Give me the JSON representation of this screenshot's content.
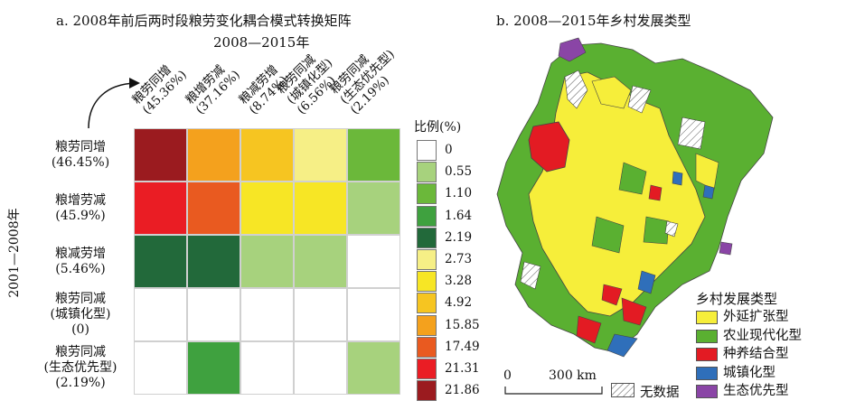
{
  "panel_a": {
    "title": "a. 2008年前后两时段粮劳变化耦合模式转换矩阵",
    "col_axis_title": "2008—2015年",
    "row_axis_title": "2001—2008年",
    "columns": [
      {
        "name": "粮劳同增",
        "pct": "(45.36%)"
      },
      {
        "name": "粮增劳减",
        "pct": "(37.16%)"
      },
      {
        "name": "粮减劳增",
        "pct": "(8.74%)"
      },
      {
        "name": "粮劳同减",
        "sub": "(城镇化型)",
        "pct": "(6.56%)"
      },
      {
        "name": "粮劳同减",
        "sub": "(生态优先型)",
        "pct": "(2.19%)"
      }
    ],
    "rows": [
      {
        "name": "粮劳同增",
        "pct": "(46.45%)"
      },
      {
        "name": "粮增劳减",
        "pct": "(45.9%)"
      },
      {
        "name": "粮减劳增",
        "pct": "(5.46%)"
      },
      {
        "name": "粮劳同减",
        "sub": "(城镇化型)",
        "pct": "(0)"
      },
      {
        "name": "粮劳同减",
        "sub": "(生态优先型)",
        "pct": "(2.19%)"
      }
    ],
    "matrix_colors": [
      [
        "#9b1b1f",
        "#f4a11d",
        "#f6c521",
        "#f6ef86",
        "#6bb83a"
      ],
      [
        "#ea1d24",
        "#e95a20",
        "#f7e625",
        "#f7e625",
        "#a7d27d"
      ],
      [
        "#22693a",
        "#22693a",
        "#a7d27d",
        "#a7d27d",
        "#ffffff"
      ],
      [
        "#ffffff",
        "#ffffff",
        "#ffffff",
        "#ffffff",
        "#ffffff"
      ],
      [
        "#ffffff",
        "#3fa13f",
        "#ffffff",
        "#ffffff",
        "#a7d27d"
      ]
    ],
    "legend_title": "比例(%)",
    "legend": [
      {
        "label": "0",
        "color": "#ffffff"
      },
      {
        "label": "0.55",
        "color": "#a7d27d"
      },
      {
        "label": "1.10",
        "color": "#6bb83a"
      },
      {
        "label": "1.64",
        "color": "#3fa13f"
      },
      {
        "label": "2.19",
        "color": "#22693a"
      },
      {
        "label": "2.73",
        "color": "#f6ef86"
      },
      {
        "label": "3.28",
        "color": "#f7e625"
      },
      {
        "label": "4.92",
        "color": "#f6c521"
      },
      {
        "label": "15.85",
        "color": "#f4a11d"
      },
      {
        "label": "17.49",
        "color": "#e95a20"
      },
      {
        "label": "21.31",
        "color": "#ea1d24"
      },
      {
        "label": "21.86",
        "color": "#9b1b1f"
      }
    ]
  },
  "panel_b": {
    "title": "b. 2008—2015年乡村发展类型",
    "legend_title": "乡村发展类型",
    "legend": [
      {
        "label": "外延扩张型",
        "color": "#f6ee3a"
      },
      {
        "label": "农业现代化型",
        "color": "#5ab031"
      },
      {
        "label": "种养结合型",
        "color": "#e31b23"
      },
      {
        "label": "城镇化型",
        "color": "#2f6fba"
      },
      {
        "label": "生态优先型",
        "color": "#8a45a6"
      }
    ],
    "no_data_label": "无数据",
    "scale_start": "0",
    "scale_end": "300 km"
  }
}
